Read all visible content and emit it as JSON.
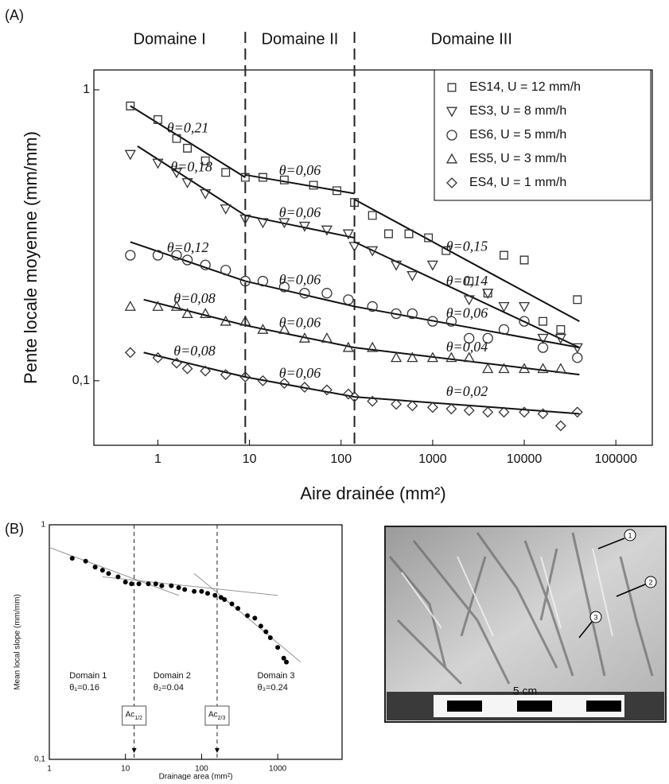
{
  "panel_labels": [
    "(A)",
    "(B)"
  ],
  "photo": {
    "scale_label": "5 cm",
    "markers": [
      "1",
      "2",
      "3"
    ]
  },
  "chart_data": [
    {
      "type": "scatter",
      "xscale": "log",
      "yscale": "log",
      "x_label": "Aire drainée (mm²)",
      "y_label": "Pente locale moyenne (mm/mm)",
      "xlim": [
        0.2,
        250000
      ],
      "ylim": [
        0.06,
        1.17
      ],
      "xticks": [
        1,
        10,
        100,
        1000,
        10000,
        100000
      ],
      "yticks": [
        1,
        {
          "value": 0.1,
          "label": "0,1"
        }
      ],
      "legend": "top-right",
      "fit_color": "#111111",
      "dividers": [
        9,
        140
      ],
      "domains": [
        "Domaine I",
        "Domaine II",
        "Domaine III"
      ],
      "series": [
        {
          "name": "ES14, U = 12 mm/h",
          "marker": "square",
          "color": "#333333",
          "x": [
            0.5,
            1,
            1.6,
            2.1,
            3.3,
            5.5,
            9,
            14,
            24,
            50,
            90,
            140,
            220,
            330,
            550,
            900,
            1400,
            2500,
            4000,
            6000,
            10000,
            16000,
            25000,
            38000
          ],
          "values": [
            0.88,
            0.79,
            0.68,
            0.63,
            0.57,
            0.52,
            0.5,
            0.5,
            0.49,
            0.47,
            0.45,
            0.41,
            0.37,
            0.32,
            0.32,
            0.31,
            0.28,
            0.22,
            0.2,
            0.27,
            0.26,
            0.16,
            0.15,
            0.19
          ]
        },
        {
          "name": "ES3, U = 8 mm/h",
          "marker": "triangle-down",
          "color": "#333333",
          "x": [
            0.5,
            1,
            1.6,
            2.1,
            3.3,
            5.5,
            9,
            14,
            24,
            40,
            70,
            120,
            140,
            220,
            400,
            600,
            1000,
            2500,
            4000,
            6000,
            10000,
            16000,
            25000,
            38000
          ],
          "values": [
            0.6,
            0.56,
            0.52,
            0.48,
            0.44,
            0.39,
            0.36,
            0.35,
            0.35,
            0.34,
            0.33,
            0.32,
            0.29,
            0.28,
            0.25,
            0.23,
            0.25,
            0.19,
            0.2,
            0.18,
            0.18,
            0.14,
            0.14,
            0.13
          ]
        },
        {
          "name": "ES6, U = 5 mm/h",
          "marker": "circle",
          "color": "#333333",
          "x": [
            0.5,
            1,
            1.6,
            2.1,
            3.3,
            5.5,
            9,
            14,
            24,
            40,
            70,
            120,
            220,
            400,
            600,
            1000,
            1600,
            2500,
            4000,
            6000,
            10000,
            16000,
            38000
          ],
          "values": [
            0.27,
            0.27,
            0.27,
            0.26,
            0.25,
            0.24,
            0.22,
            0.22,
            0.21,
            0.2,
            0.2,
            0.19,
            0.18,
            0.17,
            0.17,
            0.16,
            0.16,
            0.14,
            0.14,
            0.15,
            0.16,
            0.13,
            0.12
          ]
        },
        {
          "name": "ES5, U = 3 mm/h",
          "marker": "triangle-up",
          "color": "#333333",
          "x": [
            0.5,
            1,
            1.6,
            2.1,
            3.3,
            5.5,
            9,
            14,
            24,
            40,
            70,
            120,
            220,
            400,
            600,
            1000,
            1600,
            2500,
            4000,
            6000,
            10000,
            16000,
            25000
          ],
          "values": [
            0.18,
            0.18,
            0.18,
            0.17,
            0.17,
            0.16,
            0.16,
            0.15,
            0.15,
            0.14,
            0.14,
            0.13,
            0.13,
            0.12,
            0.12,
            0.12,
            0.12,
            0.12,
            0.11,
            0.11,
            0.11,
            0.11,
            0.11
          ]
        },
        {
          "name": "ES4, U = 1 mm/h",
          "marker": "diamond",
          "color": "#333333",
          "x": [
            0.5,
            1,
            1.6,
            2.1,
            3.3,
            5.5,
            9,
            14,
            24,
            40,
            70,
            120,
            140,
            220,
            400,
            600,
            1000,
            1600,
            2500,
            4000,
            6000,
            10000,
            16000,
            25000,
            38000
          ],
          "values": [
            0.125,
            0.12,
            0.115,
            0.11,
            0.108,
            0.105,
            0.103,
            0.1,
            0.098,
            0.095,
            0.093,
            0.09,
            0.088,
            0.085,
            0.083,
            0.082,
            0.081,
            0.08,
            0.079,
            0.078,
            0.078,
            0.078,
            0.077,
            0.07,
            0.078
          ]
        }
      ],
      "fits": [
        {
          "x": [
            0.5,
            9
          ],
          "y": [
            0.88,
            0.5
          ],
          "label": "θ=0,21"
        },
        {
          "x": [
            9,
            140
          ],
          "y": [
            0.51,
            0.44
          ],
          "label": "θ=0,06"
        },
        {
          "x": [
            140,
            40000
          ],
          "y": [
            0.42,
            0.16
          ],
          "label": "θ=0,15"
        },
        {
          "x": [
            0.6,
            9
          ],
          "y": [
            0.64,
            0.37
          ],
          "label": "θ=0,18"
        },
        {
          "x": [
            9,
            140
          ],
          "y": [
            0.37,
            0.31
          ],
          "label": "θ=0,06"
        },
        {
          "x": [
            140,
            40000
          ],
          "y": [
            0.3,
            0.13
          ],
          "label": "θ=0,14"
        },
        {
          "x": [
            0.5,
            9
          ],
          "y": [
            0.3,
            0.22
          ],
          "label": "θ=0,12"
        },
        {
          "x": [
            9,
            140
          ],
          "y": [
            0.22,
            0.18
          ],
          "label": "θ=0,06"
        },
        {
          "x": [
            140,
            40000
          ],
          "y": [
            0.18,
            0.13
          ],
          "label": "θ=0,06"
        },
        {
          "x": [
            0.7,
            9
          ],
          "y": [
            0.19,
            0.155
          ],
          "label": "θ=0,08"
        },
        {
          "x": [
            9,
            140
          ],
          "y": [
            0.155,
            0.13
          ],
          "label": "θ=0,06"
        },
        {
          "x": [
            140,
            40000
          ],
          "y": [
            0.13,
            0.105
          ],
          "label": "θ=0,04"
        },
        {
          "x": [
            0.7,
            9
          ],
          "y": [
            0.125,
            0.103
          ],
          "label": "θ=0,08"
        },
        {
          "x": [
            9,
            140
          ],
          "y": [
            0.103,
            0.088
          ],
          "label": "θ=0,06"
        },
        {
          "x": [
            140,
            40000
          ],
          "y": [
            0.088,
            0.077
          ],
          "label": "θ=0,02"
        }
      ]
    },
    {
      "type": "scatter",
      "xscale": "log",
      "yscale": "log",
      "x_label": "Drainage area (mm²)",
      "y_label": "Mean local slope (mm/mm)",
      "xlim": [
        1,
        7000
      ],
      "ylim": [
        0.1,
        1
      ],
      "xticks": [
        1,
        10,
        100,
        1000
      ],
      "yticks": [
        1,
        {
          "value": 0.1,
          "label": "0,1"
        }
      ],
      "marker": "dot",
      "color": "#000000",
      "fit_color": "#888888",
      "x": [
        2,
        3,
        4,
        5,
        6,
        8,
        10,
        12,
        15,
        20,
        25,
        30,
        40,
        50,
        60,
        80,
        100,
        120,
        150,
        180,
        200,
        250,
        300,
        400,
        500,
        600,
        700,
        800,
        1000,
        1200,
        1300
      ],
      "values": [
        0.72,
        0.7,
        0.66,
        0.64,
        0.62,
        0.6,
        0.57,
        0.56,
        0.56,
        0.56,
        0.56,
        0.55,
        0.55,
        0.54,
        0.53,
        0.52,
        0.52,
        0.51,
        0.5,
        0.49,
        0.48,
        0.46,
        0.44,
        0.41,
        0.4,
        0.37,
        0.35,
        0.33,
        0.3,
        0.27,
        0.26
      ],
      "fits": [
        {
          "x": [
            1,
            50
          ],
          "y": [
            0.8,
            0.5
          ]
        },
        {
          "x": [
            5,
            1000
          ],
          "y": [
            0.6,
            0.5
          ]
        },
        {
          "x": [
            80,
            2000
          ],
          "y": [
            0.62,
            0.26
          ]
        }
      ],
      "dividers": [
        13,
        160
      ],
      "thresholds": [
        {
          "label": "Ac",
          "sub": "1/2"
        },
        {
          "label": "Ac",
          "sub": "2/3"
        }
      ],
      "domains": [
        {
          "name": "Domain 1",
          "theta": "θ₁=0.16"
        },
        {
          "name": "Domain 2",
          "theta": "θ₂=0.04"
        },
        {
          "name": "Domain 3",
          "theta": "θ₃=0.24"
        }
      ]
    }
  ]
}
